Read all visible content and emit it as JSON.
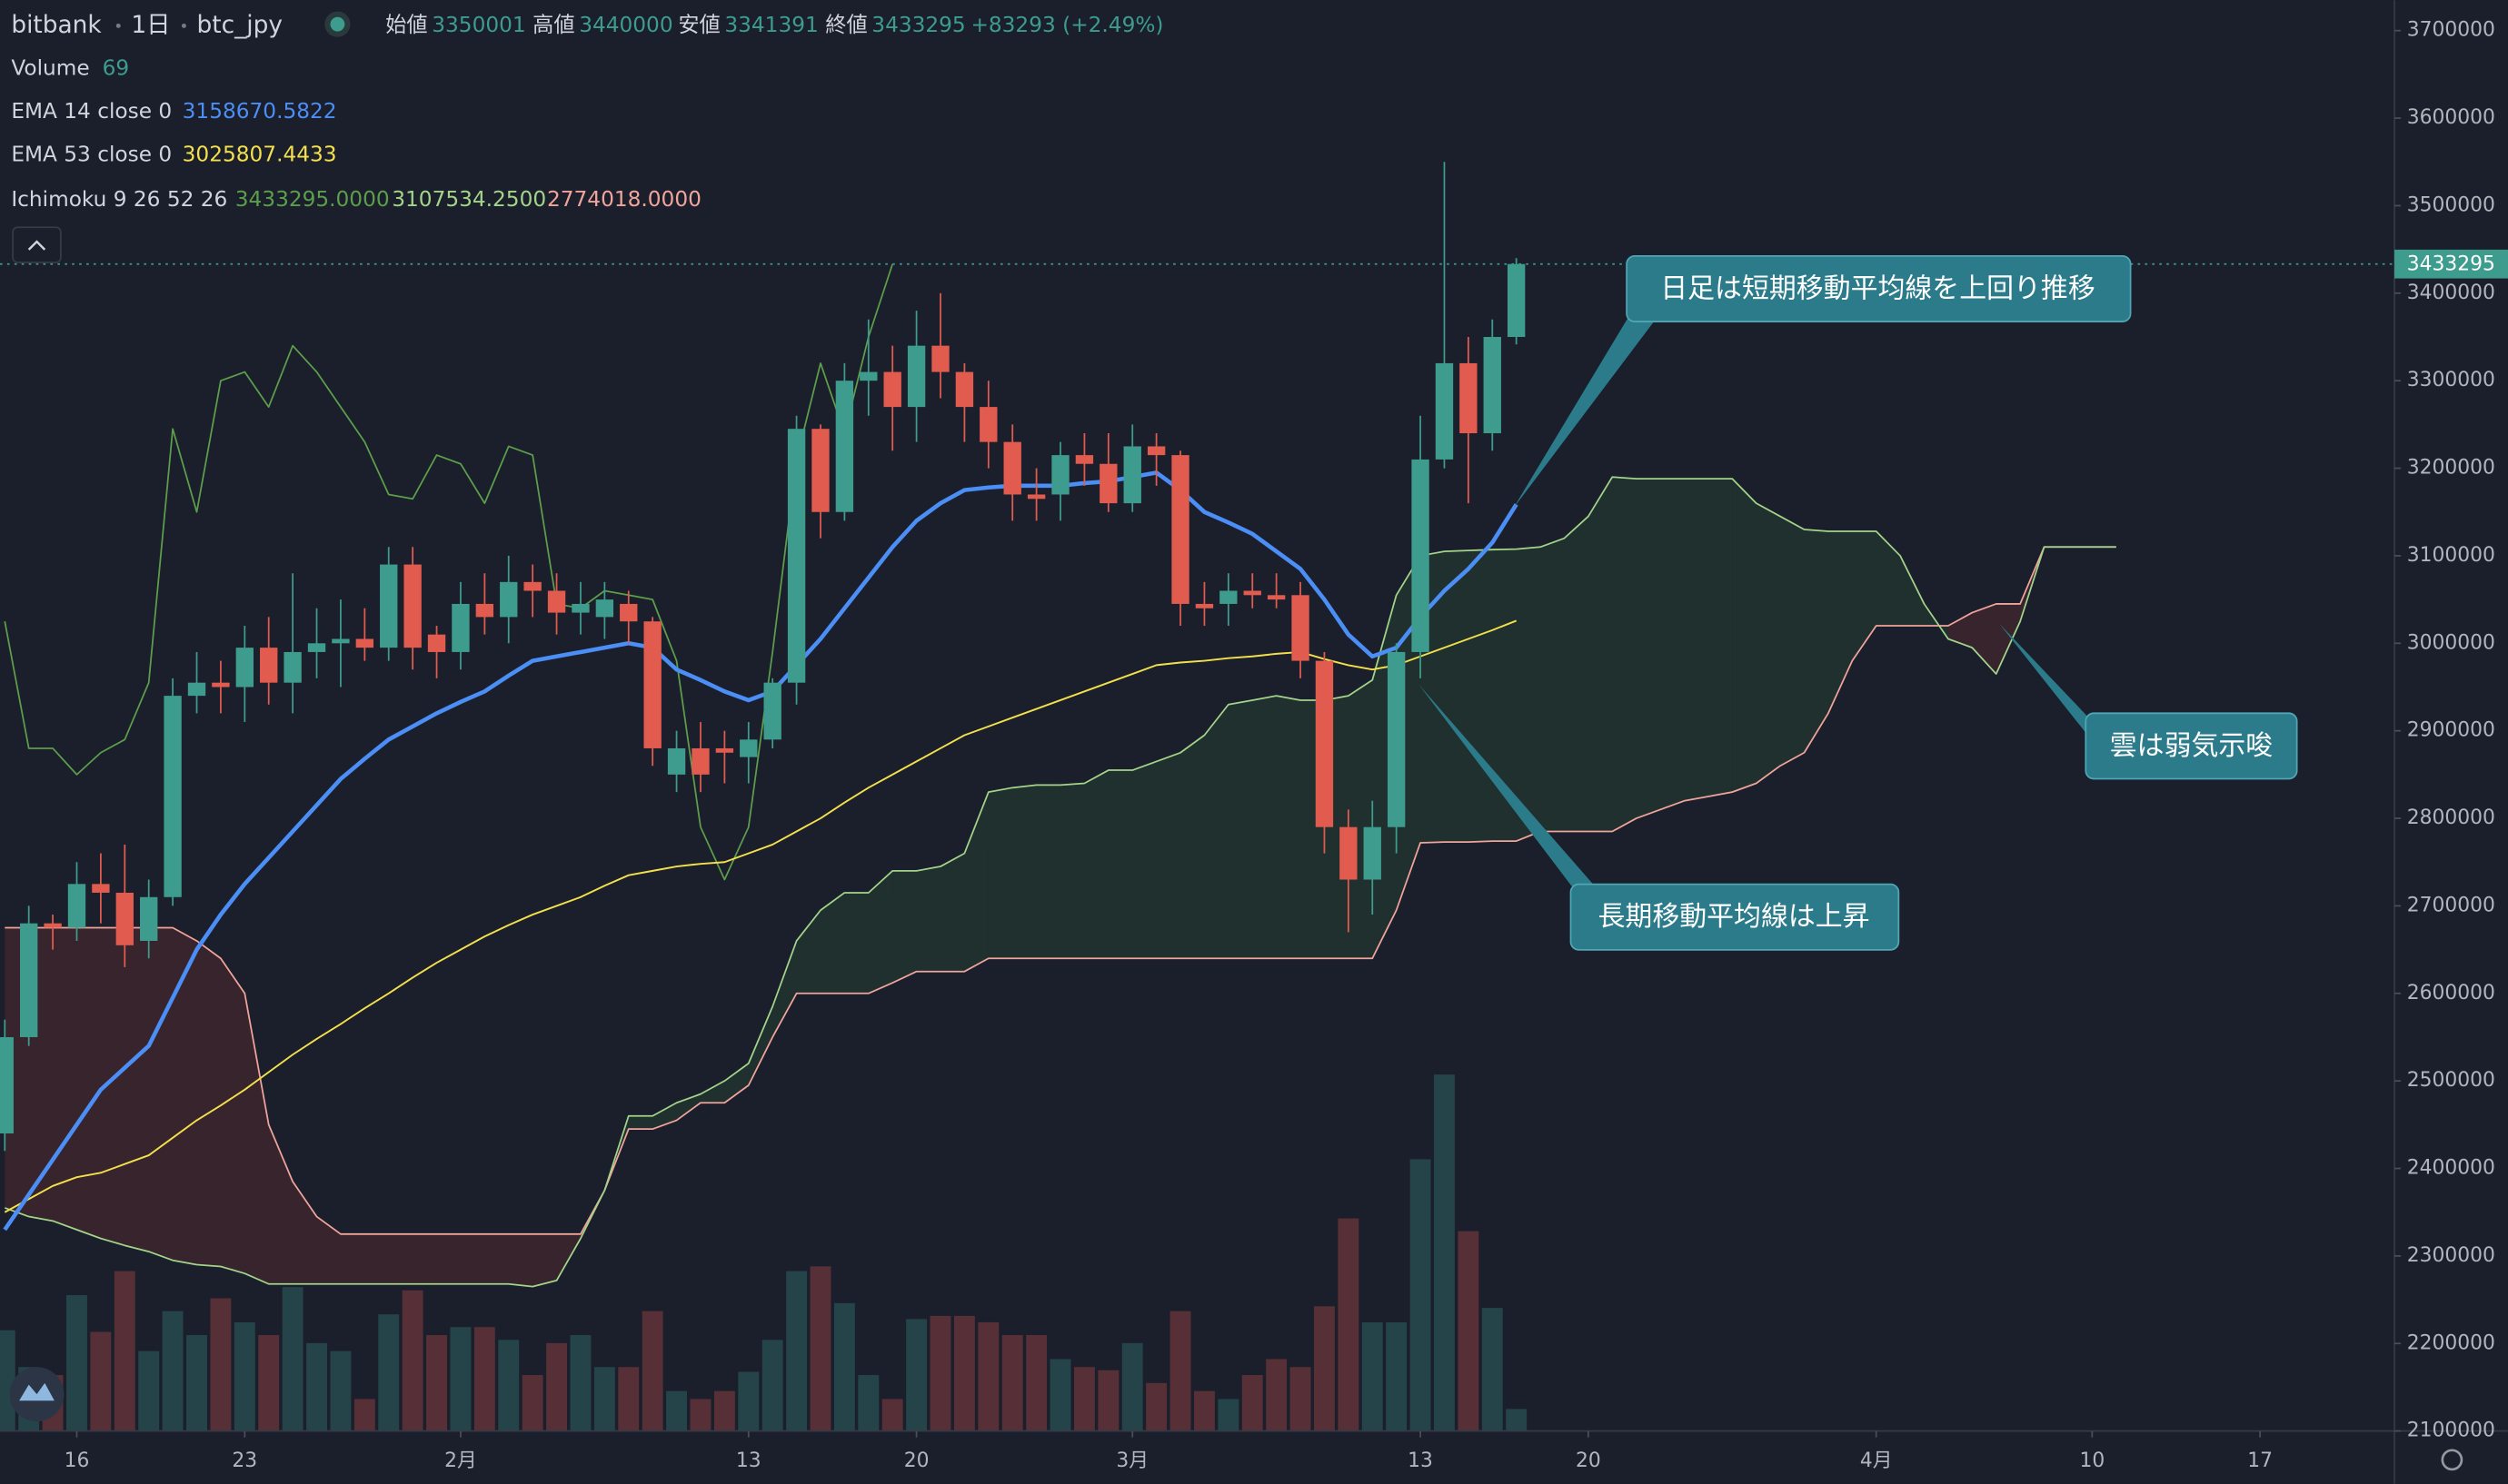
{
  "chart_data": {
    "type": "candlestick",
    "header": {
      "exchange": "bitbank",
      "interval": "1日",
      "symbol": "btc_jpy",
      "open_label": "始値",
      "high_label": "高値",
      "low_label": "安値",
      "close_label": "終値",
      "change": "+83293 (+2.49%)"
    },
    "up_color": "#3d9c8d",
    "down_color": "#e15b4f",
    "categories": [
      null,
      null,
      null,
      "16",
      null,
      null,
      null,
      null,
      null,
      null,
      "23",
      null,
      null,
      null,
      null,
      null,
      null,
      null,
      null,
      "2月",
      null,
      null,
      null,
      null,
      null,
      null,
      null,
      null,
      null,
      null,
      null,
      "13",
      null,
      null,
      null,
      null,
      null,
      null,
      "20",
      null,
      null,
      null,
      null,
      null,
      null,
      null,
      null,
      "3月",
      null,
      null,
      null,
      null,
      null,
      null,
      null,
      null,
      null,
      null,
      null,
      "13",
      null,
      null,
      null,
      null,
      null,
      null,
      "20",
      null,
      null,
      null,
      null,
      null,
      null,
      null,
      null,
      null,
      null,
      null,
      "4月",
      null,
      null,
      null,
      null,
      null,
      null,
      null,
      null,
      "10",
      null,
      null,
      null,
      null,
      null,
      null,
      "17"
    ],
    "candles": {
      "open": [
        2440000,
        2550000,
        2680000,
        2675000,
        2725000,
        2715000,
        2660000,
        2710000,
        2940000,
        2955000,
        2950000,
        2995000,
        2955000,
        2990000,
        3000000,
        3005000,
        2995000,
        3090000,
        3010000,
        2990000,
        3045000,
        3030000,
        3070000,
        3060000,
        3035000,
        3030000,
        3045000,
        3025000,
        2850000,
        2880000,
        2880000,
        2870000,
        2890000,
        2955000,
        3245000,
        3150000,
        3300000,
        3310000,
        3270000,
        3340000,
        3310000,
        3270000,
        3230000,
        3170000,
        3170000,
        3215000,
        3205000,
        3160000,
        3225000,
        3215000,
        3045000,
        3045000,
        3060000,
        3055000,
        3055000,
        2980000,
        2790000,
        2730000,
        2790000,
        2990000,
        3210000,
        3320000,
        3240000,
        3350001,
        null,
        null,
        null,
        null,
        null,
        null,
        null,
        null,
        null,
        null,
        null,
        null,
        null,
        null,
        null,
        null,
        null,
        null,
        null,
        null,
        null,
        null,
        null,
        null,
        null,
        null,
        null,
        null,
        null,
        null,
        null
      ],
      "high": [
        2570000,
        2700000,
        2690000,
        2750000,
        2760000,
        2770000,
        2730000,
        2960000,
        2990000,
        2980000,
        3020000,
        3030000,
        3080000,
        3040000,
        3050000,
        3040000,
        3110000,
        3110000,
        3020000,
        3070000,
        3080000,
        3100000,
        3090000,
        3080000,
        3070000,
        3070000,
        3060000,
        3030000,
        2900000,
        2910000,
        2900000,
        2910000,
        2960000,
        3260000,
        3250000,
        3320000,
        3370000,
        3340000,
        3380000,
        3400000,
        3320000,
        3300000,
        3250000,
        3200000,
        3230000,
        3240000,
        3240000,
        3250000,
        3240000,
        3220000,
        3070000,
        3080000,
        3080000,
        3080000,
        3070000,
        2990000,
        2810000,
        2820000,
        3000000,
        3260000,
        3550000,
        3350000,
        3370000,
        3440000,
        null,
        null,
        null,
        null,
        null,
        null,
        null,
        null,
        null,
        null,
        null,
        null,
        null,
        null,
        null,
        null,
        null,
        null,
        null,
        null,
        null,
        null,
        null,
        null,
        null,
        null,
        null,
        null,
        null,
        null,
        null
      ],
      "low": [
        2420000,
        2540000,
        2650000,
        2660000,
        2680000,
        2630000,
        2640000,
        2700000,
        2920000,
        2920000,
        2910000,
        2930000,
        2920000,
        2960000,
        2950000,
        2980000,
        2980000,
        2970000,
        2960000,
        2970000,
        3010000,
        3000000,
        3030000,
        3010000,
        3010000,
        3005000,
        3000000,
        2860000,
        2830000,
        2830000,
        2840000,
        2840000,
        2880000,
        2930000,
        3120000,
        3140000,
        3260000,
        3220000,
        3230000,
        3280000,
        3230000,
        3200000,
        3140000,
        3140000,
        3140000,
        3180000,
        3150000,
        3150000,
        3180000,
        3020000,
        3020000,
        3020000,
        3040000,
        3040000,
        2960000,
        2760000,
        2670000,
        2690000,
        2760000,
        2960000,
        3200000,
        3160000,
        3220000,
        3341391,
        null,
        null,
        null,
        null,
        null,
        null,
        null,
        null,
        null,
        null,
        null,
        null,
        null,
        null,
        null,
        null,
        null,
        null,
        null,
        null,
        null,
        null,
        null,
        null,
        null,
        null,
        null,
        null,
        null,
        null,
        null
      ],
      "close": [
        2550000,
        2680000,
        2675000,
        2725000,
        2715000,
        2655000,
        2710000,
        2940000,
        2955000,
        2950000,
        2995000,
        2955000,
        2990000,
        3000000,
        3005000,
        2995000,
        3090000,
        2995000,
        2990000,
        3045000,
        3030000,
        3070000,
        3060000,
        3035000,
        3045000,
        3050000,
        3025000,
        2880000,
        2880000,
        2850000,
        2875000,
        2890000,
        2955000,
        3245000,
        3150000,
        3300000,
        3310000,
        3270000,
        3340000,
        3310000,
        3270000,
        3230000,
        3170000,
        3165000,
        3215000,
        3205000,
        3160000,
        3225000,
        3215000,
        3045000,
        3040000,
        3060000,
        3055000,
        3050000,
        2980000,
        2790000,
        2730000,
        2790000,
        2990000,
        3210000,
        3320000,
        3240000,
        3350000,
        3433295,
        null,
        null,
        null,
        null,
        null,
        null,
        null,
        null,
        null,
        null,
        null,
        null,
        null,
        null,
        null,
        null,
        null,
        null,
        null,
        null,
        null,
        null,
        null,
        null,
        null,
        null,
        null,
        null,
        null,
        null,
        null
      ]
    },
    "volume": {
      "name": "Volume",
      "values": [
        315,
        200,
        175,
        425,
        310,
        500,
        250,
        375,
        300,
        415,
        340,
        300,
        450,
        275,
        250,
        100,
        365,
        440,
        300,
        325,
        325,
        285,
        175,
        275,
        300,
        200,
        200,
        375,
        125,
        100,
        125,
        185,
        285,
        500,
        515,
        400,
        175,
        100,
        350,
        360,
        360,
        340,
        300,
        300,
        225,
        200,
        190,
        275,
        150,
        375,
        125,
        100,
        175,
        225,
        200,
        390,
        665,
        340,
        340,
        850,
        1115,
        625,
        385,
        69,
        null,
        null,
        null,
        null,
        null,
        null,
        null,
        null,
        null,
        null,
        null,
        null,
        null,
        null,
        null,
        null,
        null,
        null,
        null,
        null,
        null,
        null,
        null,
        null,
        null,
        null,
        null,
        null,
        null,
        null,
        null
      ]
    },
    "lines": [
      {
        "name": "EMA 14 close 0",
        "color": "#4b8ef5",
        "width": 2.6,
        "values": [
          2330000,
          2370000,
          2410000,
          2450000,
          2490000,
          2515000,
          2540000,
          2595000,
          2650000,
          2690000,
          2725000,
          2755000,
          2785000,
          2815000,
          2845000,
          2868000,
          2890000,
          2905000,
          2920000,
          2933000,
          2945000,
          2963000,
          2980000,
          2985000,
          2990000,
          2995000,
          3000000,
          2995000,
          2970000,
          2958000,
          2945000,
          2935000,
          2945000,
          2975000,
          3005000,
          3040000,
          3075000,
          3110000,
          3140000,
          3160000,
          3175000,
          3178000,
          3180000,
          3180000,
          3180000,
          3183000,
          3185000,
          3190000,
          3195000,
          3175000,
          3150000,
          3138000,
          3125000,
          3105000,
          3085000,
          3050000,
          3010000,
          2985000,
          2995000,
          3030000,
          3060000,
          3085000,
          3115000,
          3158670.5822,
          null,
          null,
          null,
          null,
          null,
          null,
          null,
          null,
          null,
          null,
          null,
          null,
          null,
          null,
          null,
          null,
          null,
          null,
          null,
          null,
          null,
          null,
          null,
          null,
          null,
          null,
          null,
          null,
          null,
          null,
          null
        ]
      },
      {
        "name": "EMA 53 close 0",
        "color": "#f3e04c",
        "width": 1.1,
        "values": [
          2350000,
          2365000,
          2380000,
          2390000,
          2395000,
          2405000,
          2415000,
          2435000,
          2455000,
          2472000,
          2490000,
          2510000,
          2530000,
          2548000,
          2565000,
          2583000,
          2600000,
          2618000,
          2635000,
          2650000,
          2665000,
          2678000,
          2690000,
          2700000,
          2710000,
          2723000,
          2735000,
          2740000,
          2745000,
          2748000,
          2750000,
          2760000,
          2770000,
          2785000,
          2800000,
          2818000,
          2835000,
          2850000,
          2865000,
          2880000,
          2895000,
          2905000,
          2915000,
          2925000,
          2935000,
          2945000,
          2955000,
          2965000,
          2975000,
          2978000,
          2980000,
          2983000,
          2985000,
          2988000,
          2990000,
          2982000,
          2975000,
          2970000,
          2975000,
          2985000,
          2995000,
          3005000,
          3015000,
          3025807.4433,
          null,
          null,
          null,
          null,
          null,
          null,
          null,
          null,
          null,
          null,
          null,
          null,
          null,
          null,
          null,
          null,
          null,
          null,
          null,
          null,
          null,
          null,
          null,
          null,
          null,
          null,
          null,
          null,
          null,
          null,
          null
        ]
      }
    ],
    "ichimoku": {
      "name": "Ichimoku 9 26 52 26",
      "legend_values": [
        "3433295.0000",
        "3107534.2500",
        "2774018.0000"
      ],
      "lagging": {
        "color": "#5c9e4b",
        "values": [
          3025000,
          2880000,
          2880000,
          2850000,
          2875000,
          2890000,
          2955000,
          3245000,
          3150000,
          3300000,
          3310000,
          3270000,
          3340000,
          3310000,
          3270000,
          3230000,
          3170000,
          3165000,
          3215000,
          3205000,
          3160000,
          3225000,
          3215000,
          3045000,
          3040000,
          3060000,
          3055000,
          3050000,
          2980000,
          2790000,
          2730000,
          2790000,
          2990000,
          3210000,
          3320000,
          3240000,
          3350000,
          3433295,
          null,
          null,
          null,
          null,
          null,
          null,
          null,
          null,
          null,
          null,
          null,
          null,
          null,
          null,
          null,
          null,
          null,
          null,
          null,
          null,
          null,
          null,
          null,
          null,
          null,
          null,
          null,
          null,
          null,
          null,
          null,
          null,
          null,
          null,
          null,
          null,
          null,
          null,
          null,
          null,
          null,
          null,
          null,
          null,
          null,
          null,
          null,
          null,
          null,
          null,
          null
        ]
      },
      "span_a": {
        "color": "#a3d48a",
        "values": [
          2355000,
          2345000,
          2340000,
          2330000,
          2320000,
          2312000,
          2305000,
          2295000,
          2290000,
          2288000,
          2280000,
          2268000,
          2268000,
          2268000,
          2268000,
          2268000,
          2268000,
          2268000,
          2268000,
          2268000,
          2268000,
          2268000,
          2265000,
          2272000,
          2320000,
          2375000,
          2460000,
          2460000,
          2475000,
          2485000,
          2500000,
          2520000,
          2585000,
          2660000,
          2695000,
          2715000,
          2715000,
          2740000,
          2740000,
          2745000,
          2760000,
          2830000,
          2835000,
          2838000,
          2838000,
          2840000,
          2855000,
          2855000,
          2865000,
          2875000,
          2895000,
          2930000,
          2935000,
          2940000,
          2935000,
          2935000,
          2940000,
          2958000,
          3055000,
          3100000,
          3105000,
          3106000,
          3107000,
          3107534.25,
          3110000,
          3120000,
          3145000,
          3190000,
          3188000,
          3188000,
          3188000,
          3188000,
          3188000,
          3160000,
          3145000,
          3130000,
          3128000,
          3128000,
          3128000,
          3100000,
          3045000,
          3005000,
          2995000,
          2965000,
          3025000,
          3110000,
          3110000,
          3110000,
          3110000,
          null,
          null,
          null,
          null,
          null,
          null
        ]
      },
      "span_b": {
        "color": "#f0a49c",
        "values": [
          2675000,
          2675000,
          2675000,
          2675000,
          2675000,
          2675000,
          2675000,
          2675000,
          2660000,
          2640000,
          2600000,
          2450000,
          2385000,
          2345000,
          2325000,
          2325000,
          2325000,
          2325000,
          2325000,
          2325000,
          2325000,
          2325000,
          2325000,
          2325000,
          2325000,
          2375000,
          2445000,
          2445000,
          2455000,
          2475000,
          2475000,
          2495000,
          2550000,
          2600000,
          2600000,
          2600000,
          2600000,
          2612000,
          2625000,
          2625000,
          2625000,
          2640000,
          2640000,
          2640000,
          2640000,
          2640000,
          2640000,
          2640000,
          2640000,
          2640000,
          2640000,
          2640000,
          2640000,
          2640000,
          2640000,
          2640000,
          2640000,
          2640000,
          2695000,
          2772000,
          2773000,
          2773000,
          2774000,
          2774018,
          2785000,
          2785000,
          2785000,
          2785000,
          2800000,
          2810000,
          2820000,
          2825000,
          2830000,
          2840000,
          2860000,
          2875000,
          2920000,
          2980000,
          3020000,
          3020000,
          3020000,
          3020000,
          3035000,
          3045000,
          3045000,
          3110000,
          3110000,
          3110000,
          3110000,
          null,
          null,
          null,
          null,
          null,
          null
        ]
      },
      "bull_fill": "rgba(67,160,71,0.13)",
      "bear_fill": "rgba(244,67,54,0.13)"
    },
    "annotations": [
      {
        "text": "日足は短期移動平均線を上回り推移"
      },
      {
        "text": "長期移動平均線は上昇"
      },
      {
        "text": "雲は弱気示唆"
      }
    ],
    "ylim": [
      2100000,
      3734700
    ],
    "yticks": [
      2100000,
      2200000,
      2300000,
      2400000,
      2500000,
      2600000,
      2700000,
      2800000,
      2900000,
      3000000,
      3100000,
      3200000,
      3300000,
      3400000,
      3500000,
      3600000,
      3700000
    ]
  }
}
